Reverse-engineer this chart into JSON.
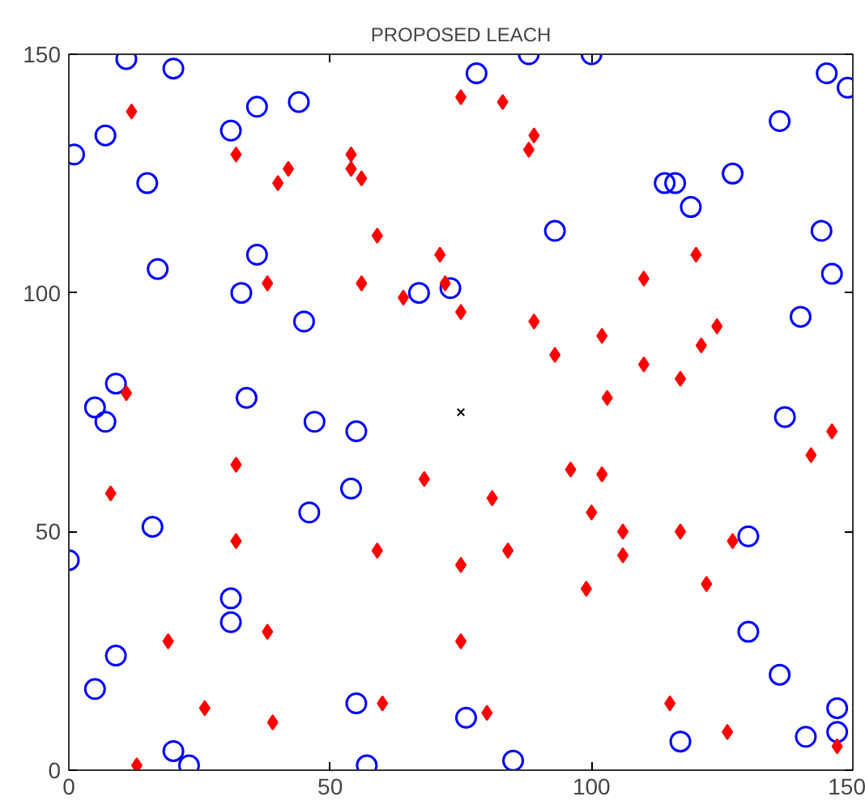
{
  "chart_data": {
    "type": "scatter",
    "title": "PROPOSED LEACH",
    "xlim": [
      0,
      150
    ],
    "ylim": [
      0,
      150
    ],
    "xticks": [
      0,
      50,
      100,
      150
    ],
    "yticks": [
      0,
      50,
      100,
      150
    ],
    "grid": false,
    "series": [
      {
        "color": "#0000ff",
        "marker": "circle",
        "x": [
          11,
          20,
          1,
          7,
          15,
          31,
          36,
          44,
          17,
          36,
          33,
          45,
          67,
          73,
          9,
          34,
          78,
          145,
          149,
          136,
          127,
          114,
          116,
          119,
          93,
          144,
          146,
          140,
          88,
          100,
          5,
          7,
          47,
          55,
          54,
          46,
          16,
          0,
          31,
          31,
          9,
          5,
          55,
          76,
          20,
          23,
          57,
          137,
          130,
          130,
          136,
          147,
          117,
          141,
          147,
          85
        ],
        "values": [
          149,
          147,
          129,
          133,
          123,
          134,
          139,
          140,
          105,
          108,
          100,
          94,
          100,
          101,
          81,
          78,
          146,
          146,
          143,
          136,
          125,
          123,
          123,
          118,
          113,
          113,
          104,
          95,
          150,
          150,
          76,
          73,
          73,
          71,
          59,
          54,
          51,
          44,
          36,
          31,
          24,
          17,
          14,
          11,
          4,
          1,
          1,
          74,
          49,
          29,
          20,
          13,
          6,
          7,
          8,
          2
        ]
      },
      {
        "color": "#ff0000",
        "marker": "diamond",
        "x": [
          12,
          32,
          42,
          40,
          54,
          54,
          56,
          59,
          75,
          38,
          56,
          64,
          71,
          72,
          75,
          11,
          83,
          89,
          88,
          120,
          110,
          89,
          102,
          124,
          121,
          93,
          110,
          117,
          103,
          32,
          8,
          68,
          32,
          59,
          75,
          38,
          19,
          75,
          60,
          26,
          39,
          13,
          146,
          142,
          96,
          102,
          81,
          100,
          106,
          117,
          127,
          84,
          106,
          122,
          99,
          115,
          80,
          126,
          147
        ],
        "values": [
          138,
          129,
          126,
          123,
          129,
          126,
          124,
          112,
          141,
          102,
          102,
          99,
          108,
          102,
          96,
          79,
          140,
          133,
          130,
          108,
          103,
          94,
          91,
          93,
          89,
          87,
          85,
          82,
          78,
          64,
          58,
          61,
          48,
          46,
          43,
          29,
          27,
          27,
          14,
          13,
          10,
          1,
          71,
          66,
          63,
          62,
          57,
          54,
          50,
          50,
          48,
          46,
          45,
          39,
          38,
          14,
          12,
          8,
          5
        ]
      },
      {
        "color": "#000000",
        "marker": "cross",
        "x": [
          75
        ],
        "values": [
          75
        ]
      }
    ]
  }
}
